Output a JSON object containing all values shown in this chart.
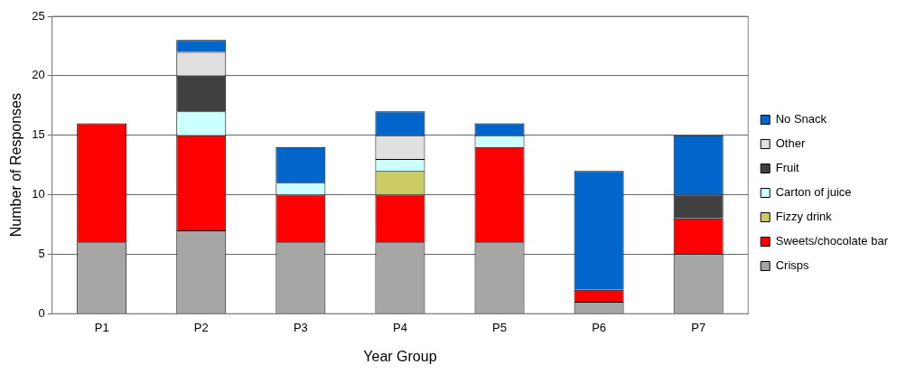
{
  "chart_data": {
    "type": "bar",
    "stacked": true,
    "xlabel": "Year Group",
    "ylabel": "Number of Responses",
    "categories": [
      "P1",
      "P2",
      "P3",
      "P4",
      "P5",
      "P6",
      "P7"
    ],
    "series": [
      {
        "name": "Crisps",
        "color": "#a6a6a6",
        "values": [
          6,
          7,
          6,
          6,
          6,
          1,
          5
        ]
      },
      {
        "name": "Sweets/chocolate bar",
        "color": "#ff0000",
        "values": [
          10,
          8,
          4,
          4,
          8,
          1,
          3
        ]
      },
      {
        "name": "Fizzy drink",
        "color": "#cccc66",
        "values": [
          0,
          0,
          0,
          2,
          0,
          0,
          0
        ]
      },
      {
        "name": "Carton of juice",
        "color": "#ccffff",
        "values": [
          0,
          2,
          1,
          1,
          1,
          0,
          0
        ]
      },
      {
        "name": "Fruit",
        "color": "#404040",
        "values": [
          0,
          3,
          0,
          0,
          0,
          0,
          2
        ]
      },
      {
        "name": "Other",
        "color": "#e0e0e0",
        "values": [
          0,
          2,
          0,
          2,
          0,
          0,
          0
        ]
      },
      {
        "name": "No Snack",
        "color": "#0066cc",
        "values": [
          0,
          1,
          3,
          2,
          1,
          10,
          5
        ]
      }
    ],
    "ylim": [
      0,
      25
    ],
    "yticks": [
      0,
      5,
      10,
      15,
      20,
      25
    ],
    "grid": "y",
    "legend": "right"
  }
}
